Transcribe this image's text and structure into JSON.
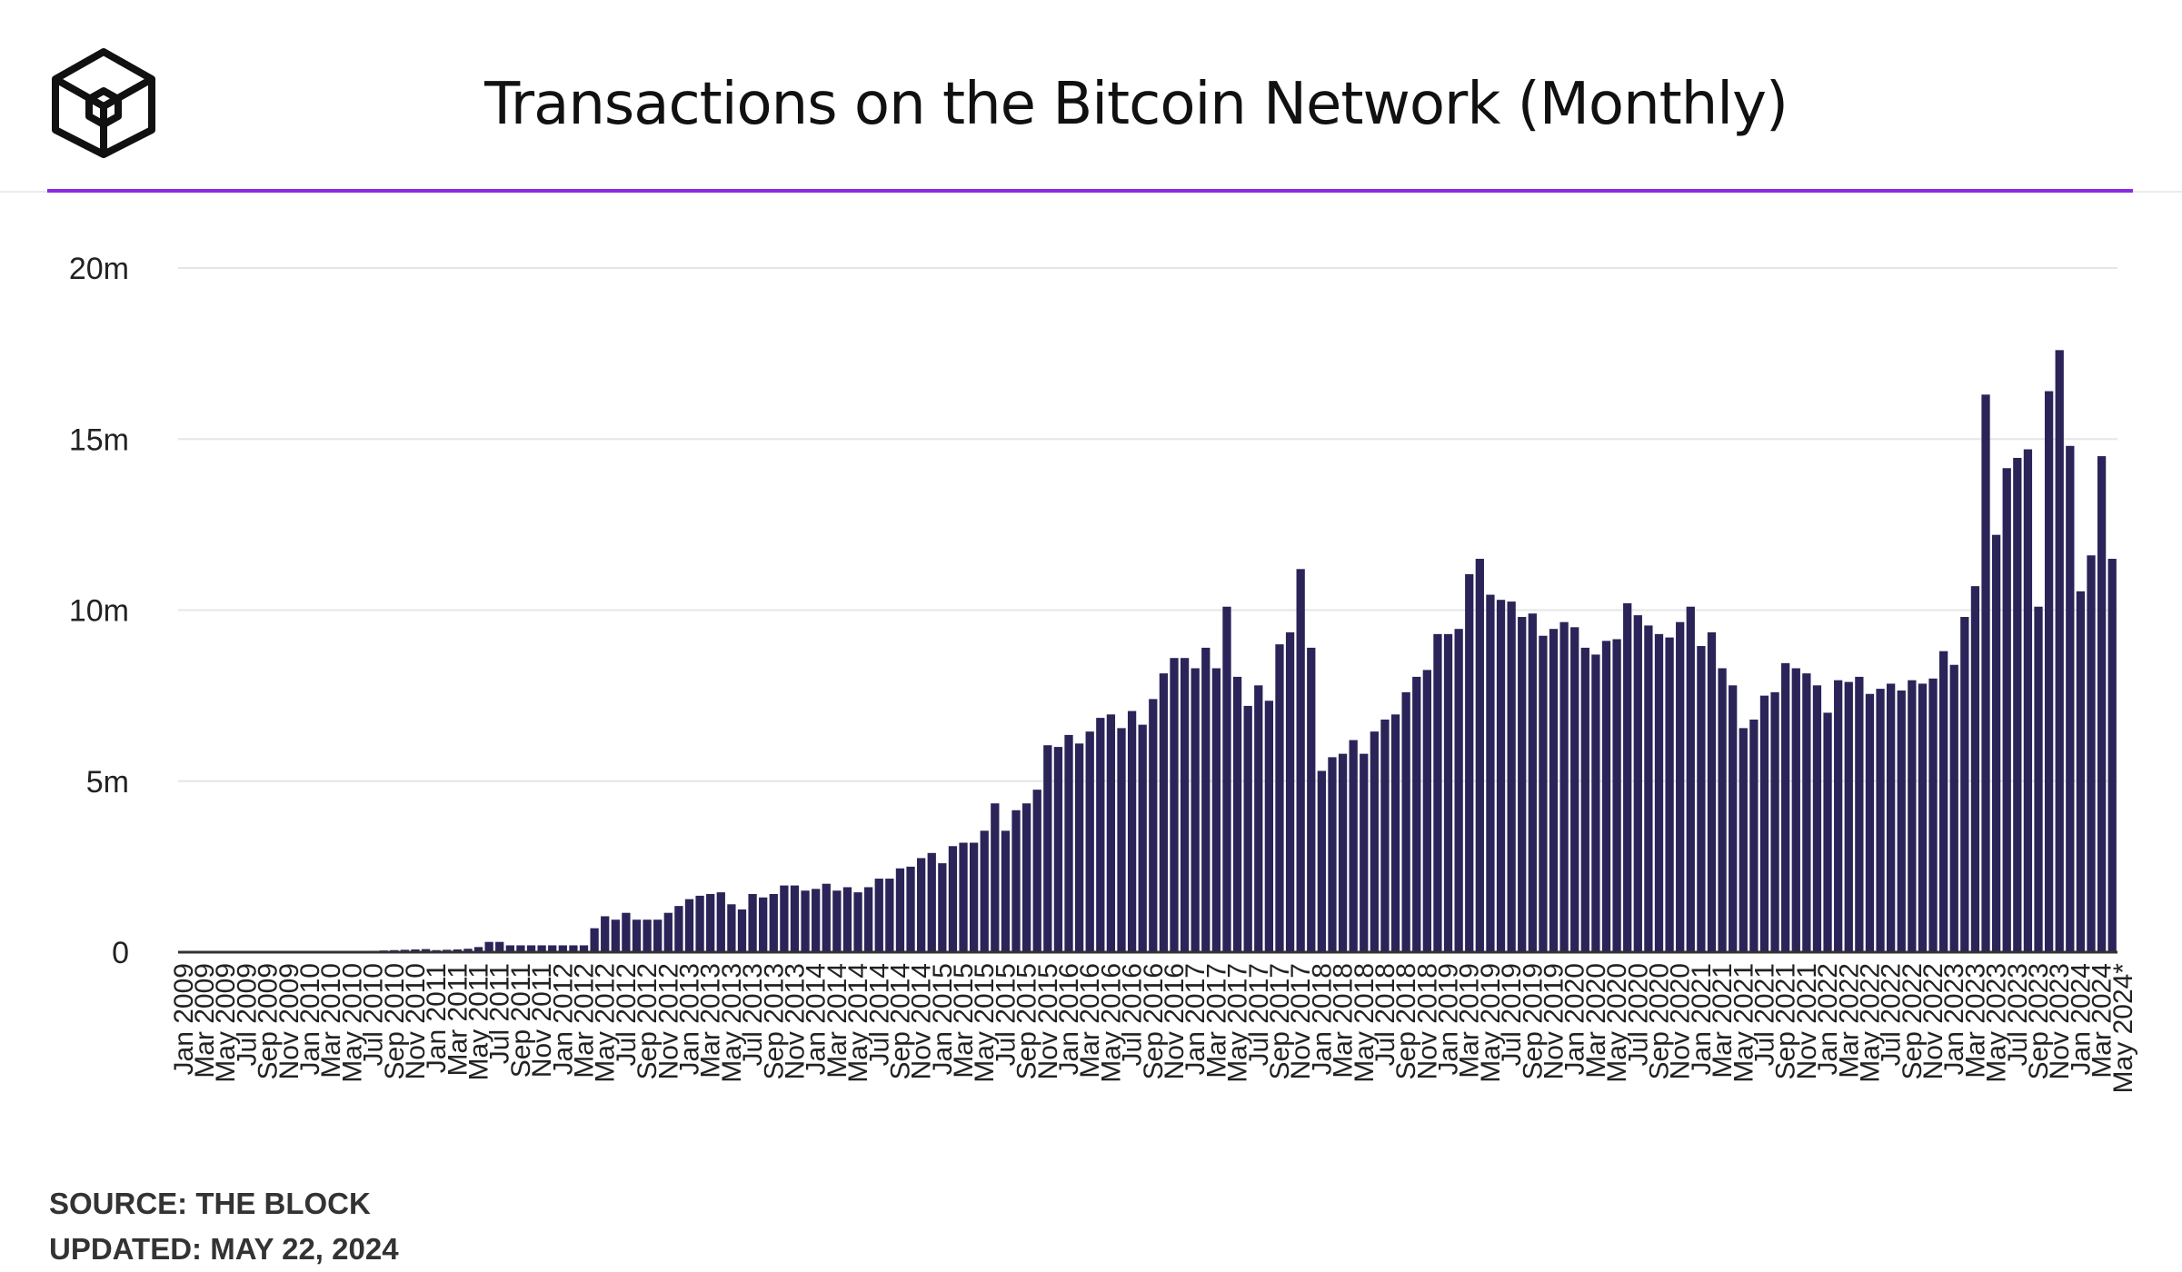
{
  "header": {
    "title": "Transactions on the Bitcoin Network (Monthly)",
    "brand": "The Block"
  },
  "colors": {
    "bar": "#2a2458",
    "accent": "#8a2be2",
    "grid": "#e6e6e6",
    "axis_text": "#222222"
  },
  "footer": {
    "source": "SOURCE: THE BLOCK",
    "updated": "UPDATED: MAY 22, 2024"
  },
  "chart_data": {
    "type": "bar",
    "title": "Transactions on the Bitcoin Network (Monthly)",
    "xlabel": "",
    "ylabel": "",
    "ylim": [
      0,
      20000000
    ],
    "yticks": [
      0,
      5000000,
      10000000,
      15000000,
      20000000
    ],
    "ytick_labels": [
      "0",
      "5m",
      "10m",
      "15m",
      "20m"
    ],
    "grid": "horizontal",
    "start": "Jan 2009",
    "x_tick_step_months": 2,
    "x_tick_labels": [
      "Jan 2009",
      "Mar 2009",
      "May 2009",
      "Jul 2009",
      "Sep 2009",
      "Nov 2009",
      "Jan 2010",
      "Mar 2010",
      "May 2010",
      "Jul 2010",
      "Sep 2010",
      "Nov 2010",
      "Jan 2011",
      "Mar 2011",
      "May 2011",
      "Jul 2011",
      "Sep 2011",
      "Nov 2011",
      "Jan 2012",
      "Mar 2012",
      "May 2012",
      "Jul 2012",
      "Sep 2012",
      "Nov 2012",
      "Jan 2013",
      "Mar 2013",
      "May 2013",
      "Jul 2013",
      "Sep 2013",
      "Nov 2013",
      "Jan 2014",
      "Mar 2014",
      "May 2014",
      "Jul 2014",
      "Sep 2014",
      "Nov 2014",
      "Jan 2015",
      "Mar 2015",
      "May 2015",
      "Jul 2015",
      "Sep 2015",
      "Nov 2015",
      "Jan 2016",
      "Mar 2016",
      "May 2016",
      "Jul 2016",
      "Sep 2016",
      "Nov 2016",
      "Jan 2017",
      "Mar 2017",
      "May 2017",
      "Jul 2017",
      "Sep 2017",
      "Nov 2017",
      "Jan 2018",
      "Mar 2018",
      "May 2018",
      "Jul 2018",
      "Sep 2018",
      "Nov 2018",
      "Jan 2019",
      "Mar 2019",
      "May 2019",
      "Jul 2019",
      "Sep 2019",
      "Nov 2019",
      "Jan 2020",
      "Mar 2020",
      "May 2020",
      "Jul 2020",
      "Sep 2020",
      "Nov 2020",
      "Jan 2021",
      "Mar 2021",
      "May 2021",
      "Jul 2021",
      "Sep 2021",
      "Nov 2021",
      "Jan 2022",
      "Mar 2022",
      "May 2022",
      "Jul 2022",
      "Sep 2022",
      "Nov 2022",
      "Jan 2023",
      "Mar 2023",
      "May 2023",
      "Jul 2023",
      "Sep 2023",
      "Nov 2023",
      "Jan 2024",
      "Mar 2024",
      "May 2024*"
    ],
    "values": [
      1000,
      1000,
      2000,
      2000,
      2000,
      2000,
      2000,
      3000,
      3000,
      3000,
      4000,
      6000,
      8000,
      10000,
      15000,
      20000,
      25000,
      30000,
      40000,
      50000,
      60000,
      70000,
      80000,
      90000,
      60000,
      70000,
      80000,
      100000,
      150000,
      300000,
      300000,
      200000,
      200000,
      200000,
      200000,
      200000,
      200000,
      200000,
      200000,
      700000,
      1050000,
      950000,
      1150000,
      950000,
      950000,
      950000,
      1150000,
      1350000,
      1550000,
      1650000,
      1700000,
      1750000,
      1400000,
      1250000,
      1700000,
      1600000,
      1700000,
      1950000,
      1950000,
      1800000,
      1850000,
      2000000,
      1800000,
      1900000,
      1750000,
      1900000,
      2150000,
      2150000,
      2450000,
      2500000,
      2750000,
      2900000,
      2600000,
      3100000,
      3200000,
      3200000,
      3550000,
      4350000,
      3550000,
      4150000,
      4350000,
      4750000,
      6050000,
      6000000,
      6350000,
      6100000,
      6450000,
      6850000,
      6950000,
      6550000,
      7050000,
      6650000,
      7400000,
      8150000,
      8600000,
      8600000,
      8300000,
      8900000,
      8300000,
      10100000,
      8050000,
      7200000,
      7800000,
      7350000,
      9000000,
      9350000,
      11200000,
      8900000,
      5300000,
      5700000,
      5800000,
      6200000,
      5800000,
      6450000,
      6800000,
      6950000,
      7600000,
      8050000,
      8250000,
      9300000,
      9300000,
      9450000,
      11050000,
      11500000,
      10450000,
      10300000,
      10250000,
      9800000,
      9900000,
      9250000,
      9450000,
      9650000,
      9500000,
      8900000,
      8700000,
      9100000,
      9150000,
      10200000,
      9850000,
      9550000,
      9300000,
      9200000,
      9650000,
      10100000,
      8950000,
      9350000,
      8300000,
      7800000,
      6550000,
      6800000,
      7500000,
      7600000,
      8450000,
      8300000,
      8150000,
      7800000,
      7000000,
      7950000,
      7900000,
      8050000,
      7550000,
      7700000,
      7850000,
      7650000,
      7950000,
      7850000,
      8000000,
      8800000,
      8400000,
      9800000,
      10700000,
      16300000,
      12200000,
      14150000,
      14450000,
      14700000,
      10100000,
      16400000,
      17600000,
      14800000,
      10550000,
      11600000,
      14500000,
      11500000
    ]
  }
}
